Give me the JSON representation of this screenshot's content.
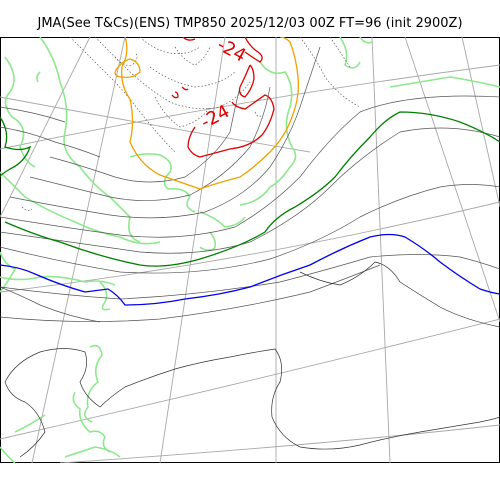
{
  "header": {
    "title": "JMA(See T&Cs)(ENS) TMP850 2025/12/03 00Z FT=96 (init 2900Z)"
  },
  "map": {
    "contour_labels": [
      {
        "text": "-24",
        "color": "#e00000"
      },
      {
        "text": "-24",
        "color": "#e00000"
      }
    ],
    "colors": {
      "grid": "#a8a8a8",
      "coastline": "#8ee88e",
      "isotherm_thin": "#555555",
      "isotherm_green": "#008000",
      "isotherm_blue": "#0000ee",
      "isotherm_orange": "#f0a000",
      "isotherm_red": "#e00000"
    }
  }
}
